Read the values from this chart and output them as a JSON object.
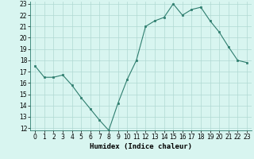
{
  "x": [
    0,
    1,
    2,
    3,
    4,
    5,
    6,
    7,
    8,
    9,
    10,
    11,
    12,
    13,
    14,
    15,
    16,
    17,
    18,
    19,
    20,
    21,
    22,
    23
  ],
  "y": [
    17.5,
    16.5,
    16.5,
    16.7,
    15.8,
    14.7,
    13.7,
    12.7,
    11.8,
    14.2,
    16.3,
    18.0,
    21.0,
    21.5,
    21.8,
    23.0,
    22.0,
    22.5,
    22.7,
    21.5,
    20.5,
    19.2,
    18.0,
    17.8
  ],
  "title": "",
  "xlabel": "Humidex (Indice chaleur)",
  "ylabel": "",
  "line_color": "#2e7d6e",
  "marker_color": "#2e7d6e",
  "bg_color": "#d8f5f0",
  "grid_color": "#b0d9d3",
  "ylim": [
    12,
    23
  ],
  "xlim": [
    -0.5,
    23.5
  ],
  "yticks": [
    12,
    13,
    14,
    15,
    16,
    17,
    18,
    19,
    20,
    21,
    22,
    23
  ],
  "xticks": [
    0,
    1,
    2,
    3,
    4,
    5,
    6,
    7,
    8,
    9,
    10,
    11,
    12,
    13,
    14,
    15,
    16,
    17,
    18,
    19,
    20,
    21,
    22,
    23
  ],
  "tick_fontsize": 5.5,
  "xlabel_fontsize": 6.5
}
